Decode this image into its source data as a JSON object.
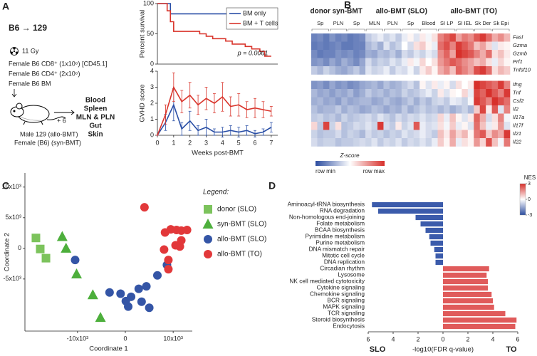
{
  "panel_labels": [
    "A",
    "B",
    "C",
    "D"
  ],
  "protocol": {
    "title": "B6 → 129",
    "dose": "11 Gy",
    "donors": [
      "Female B6 CD8⁺ (1x10⁶) [CD45.1]",
      "Female B6 CD4⁺ (2x10⁶)",
      "Female B6 BM"
    ],
    "timepoint": "+ 6",
    "tissues": [
      "Blood",
      "Spleen",
      "MLN & PLN",
      "Gut",
      "Skin"
    ],
    "recipients": [
      "Male 129 (allo-BMT)",
      "Female (B6) (syn-BMT)"
    ]
  },
  "chart_data": [
    {
      "type": "step",
      "ylabel": "Percent survival",
      "xlim": [
        0,
        7.4
      ],
      "ylim": [
        0,
        100
      ],
      "yticks": [
        0,
        50,
        100
      ],
      "legend": "upper right",
      "annotation": "p = 0.0061",
      "series": [
        {
          "name": "BM only",
          "color": "#2a4fa6",
          "x": [
            0,
            0.8,
            7
          ],
          "values": [
            100,
            83,
            83
          ]
        },
        {
          "name": "BM + T cells",
          "color": "#d9342b",
          "x": [
            0,
            0.6,
            0.8,
            1.0,
            2.6,
            3.0,
            3.4,
            4.2,
            4.6,
            5.4,
            5.8,
            6.3,
            6.6,
            7.0
          ],
          "values": [
            100,
            88,
            70,
            54,
            50,
            46,
            42,
            38,
            33,
            29,
            25,
            21,
            13,
            13
          ]
        }
      ]
    },
    {
      "type": "line",
      "ylabel": "GVHD score",
      "xlabel": "Weeks post-BMT",
      "xlim": [
        0,
        7.4
      ],
      "xticks": [
        0,
        1,
        2,
        3,
        4,
        5,
        6,
        7
      ],
      "ylim": [
        0,
        4
      ],
      "yticks": [
        0,
        1,
        2,
        3,
        4
      ],
      "x": [
        0,
        0.5,
        1,
        1.5,
        2,
        2.5,
        3,
        3.5,
        4,
        4.5,
        5,
        5.5,
        6,
        6.5,
        7
      ],
      "series": [
        {
          "color": "#2a4fa6",
          "values": [
            0,
            0.8,
            1.9,
            0.4,
            0.9,
            0.3,
            0.5,
            0.2,
            0.2,
            0.3,
            0.2,
            0.3,
            0.1,
            0.2,
            0.5
          ],
          "errors": [
            0,
            0.5,
            1.0,
            0.4,
            0.6,
            0.3,
            0.5,
            0.2,
            0.3,
            0.3,
            0.3,
            0.3,
            0.2,
            0.2,
            0.3
          ]
        },
        {
          "color": "#d9342b",
          "values": [
            0,
            1.3,
            3.0,
            2.1,
            2.5,
            1.9,
            2.3,
            2.0,
            2.4,
            1.8,
            1.9,
            1.6,
            1.7,
            1.6,
            1.5
          ],
          "errors": [
            0,
            0.6,
            0.9,
            0.7,
            0.8,
            0.6,
            0.7,
            0.6,
            0.9,
            0.6,
            0.7,
            0.5,
            0.6,
            0.5,
            0.3
          ]
        }
      ]
    },
    {
      "type": "heatmap",
      "zlim": [
        -2,
        2
      ],
      "colors": [
        "#2c4da0",
        "#ffffff",
        "#d7302b"
      ],
      "colorbar": {
        "title": "Z-score",
        "min_label": "row min",
        "max_label": "row max"
      },
      "groups": [
        {
          "label": "donor",
          "color": "#4daf3c",
          "columns": [
            null,
            "Sp",
            null
          ]
        },
        {
          "label": "syn-BMT",
          "color": "#4daf3c",
          "columns": [
            null,
            "PLN",
            null,
            null,
            "Sp",
            null
          ]
        },
        {
          "label": "allo-BMT (SLO)",
          "color": "#2f55a4",
          "columns": [
            null,
            "MLN",
            null,
            null,
            "PLN",
            null,
            null,
            "Sp",
            null,
            null,
            "Blood",
            null
          ]
        },
        {
          "label": "allo-BMT (TO)",
          "color": "#d9342b",
          "columns": [
            null,
            "SI LP",
            null,
            null,
            "SI IEL",
            null,
            null,
            "Sk Der",
            null,
            null,
            "Sk Epi",
            null
          ]
        }
      ],
      "row_blocks": [
        {
          "rows": [
            "Fasl",
            "Gzma",
            "Gzmb",
            "Prf1",
            "Tnfsf10"
          ],
          "values": [
            [
              -1.4,
              -1.3,
              -1.5,
              -1.2,
              -1.4,
              -1.3,
              -1.5,
              -1.4,
              -1.3,
              -0.6,
              -0.4,
              -0.2,
              -0.5,
              -0.3,
              -0.6,
              -0.2,
              0.1,
              -0.3,
              0.2,
              -0.1,
              0.3,
              1.2,
              1.5,
              1.8,
              0.9,
              1.3,
              1.1,
              1.6,
              1.9,
              1.4,
              0.8,
              1.1,
              0.7
            ],
            [
              -1.5,
              -1.4,
              -1.5,
              -1.4,
              -1.3,
              -1.5,
              -1.5,
              -1.4,
              -1.4,
              -0.8,
              -0.6,
              -0.9,
              -0.3,
              -0.7,
              -0.5,
              0.0,
              -0.4,
              0.3,
              0.5,
              0.1,
              -0.2,
              1.4,
              1.7,
              1.2,
              1.9,
              1.6,
              1.3,
              0.6,
              0.9,
              0.4,
              -0.3,
              0.2,
              0.1
            ],
            [
              -1.3,
              -1.5,
              -1.4,
              -1.4,
              -1.2,
              -1.3,
              -1.2,
              -1.4,
              -1.3,
              -0.9,
              -1.0,
              -0.7,
              -0.8,
              -0.6,
              -0.9,
              -0.4,
              -0.6,
              -0.3,
              -0.5,
              -0.2,
              -0.4,
              1.1,
              1.5,
              0.9,
              2.0,
              1.8,
              1.6,
              1.2,
              0.8,
              1.4,
              0.3,
              0.6,
              0.2
            ],
            [
              -1.2,
              -1.1,
              -1.3,
              -1.0,
              -1.2,
              -0.9,
              -1.1,
              -1.3,
              -1.0,
              -0.4,
              -0.7,
              -0.5,
              -0.6,
              -0.3,
              -0.5,
              -0.2,
              0.2,
              -0.1,
              0.4,
              0.0,
              0.3,
              1.0,
              1.3,
              1.6,
              1.4,
              1.1,
              0.9,
              0.6,
              0.8,
              0.3,
              -0.2,
              0.4,
              0.1
            ],
            [
              -0.6,
              -0.8,
              -0.5,
              -0.7,
              -0.9,
              -1.0,
              -0.8,
              -0.6,
              -0.9,
              -0.3,
              -0.5,
              -0.4,
              -0.2,
              -0.6,
              -0.3,
              -0.4,
              -0.1,
              -0.5,
              0.2,
              0.5,
              0.1,
              0.8,
              1.1,
              0.6,
              1.5,
              1.2,
              0.9,
              1.7,
              1.9,
              1.4,
              0.3,
              0.7,
              0.5
            ]
          ]
        },
        {
          "rows": [
            "Ifng",
            "Tnf",
            "Csf2",
            "Il2",
            "Il17a",
            "Il17f",
            "Il21",
            "Il22"
          ],
          "values": [
            [
              -1.2,
              -1.1,
              -1.3,
              -1.0,
              -1.2,
              -1.1,
              -1.3,
              -1.2,
              -1.0,
              -0.9,
              -0.8,
              -1.0,
              -0.7,
              -0.9,
              -0.8,
              -0.6,
              -0.4,
              -0.7,
              0.1,
              -0.3,
              0.2,
              -0.2,
              0.1,
              -0.4,
              0.3,
              0.0,
              0.2,
              2.0,
              1.8,
              1.6,
              1.4,
              1.9,
              1.2
            ],
            [
              -0.8,
              -1.0,
              -0.9,
              -1.1,
              -0.9,
              -1.0,
              -0.8,
              -1.1,
              -0.9,
              -0.6,
              -0.8,
              -0.7,
              -0.9,
              -0.7,
              -0.8,
              -0.5,
              -0.7,
              -0.6,
              -0.4,
              -0.2,
              -0.5,
              0.2,
              -0.3,
              0.1,
              0.0,
              0.4,
              -0.2,
              1.8,
              1.5,
              2.0,
              1.6,
              1.2,
              1.9
            ],
            [
              -0.9,
              -0.8,
              -1.0,
              -0.9,
              -1.1,
              -0.8,
              -1.0,
              -0.9,
              -0.8,
              -0.8,
              -1.0,
              -0.9,
              -0.7,
              -0.9,
              -1.0,
              -0.8,
              -0.6,
              -0.9,
              -0.6,
              -0.8,
              -0.5,
              -0.4,
              -0.6,
              -0.2,
              -0.3,
              -0.5,
              -0.1,
              1.9,
              1.6,
              1.2,
              2.0,
              1.7,
              1.4
            ],
            [
              -0.7,
              -0.9,
              -0.8,
              -0.8,
              -0.6,
              -0.9,
              -0.7,
              -0.8,
              -1.0,
              -0.9,
              -0.7,
              -0.8,
              -1.0,
              -0.8,
              -0.9,
              -0.6,
              -0.9,
              -0.7,
              -0.5,
              -0.7,
              -0.6,
              -0.8,
              -0.6,
              -0.9,
              -0.7,
              -0.5,
              -0.8,
              0.5,
              1.8,
              0.2,
              1.6,
              -0.3,
              1.2
            ],
            [
              -0.6,
              -0.5,
              -0.7,
              -0.6,
              -0.8,
              -0.5,
              -0.7,
              -0.6,
              -0.5,
              -0.4,
              -0.6,
              -0.3,
              -0.5,
              -0.7,
              -0.4,
              -0.6,
              -0.4,
              -0.5,
              -0.3,
              -0.5,
              -0.4,
              0.4,
              -0.2,
              0.6,
              0.1,
              -0.3,
              0.2,
              1.5,
              0.8,
              -0.4,
              0.3,
              1.2,
              -0.1
            ],
            [
              0.4,
              -0.6,
              1.8,
              -0.5,
              0.3,
              -0.7,
              -0.6,
              -0.4,
              -0.5,
              -0.3,
              -0.5,
              1.9,
              -0.4,
              -0.6,
              0.2,
              -0.5,
              -0.3,
              1.6,
              -0.2,
              -0.4,
              -0.3,
              0.3,
              -0.1,
              0.5,
              -0.2,
              0.1,
              -0.3,
              1.4,
              0.6,
              -0.2,
              0.2,
              1.0,
              -0.3
            ],
            [
              -0.5,
              -0.7,
              -0.6,
              -0.6,
              -0.4,
              -0.7,
              -0.5,
              -0.6,
              -0.8,
              -0.4,
              -0.6,
              -0.5,
              -0.7,
              -0.5,
              -0.6,
              -0.3,
              -0.5,
              -0.4,
              -0.2,
              -0.4,
              -0.6,
              0.6,
              0.2,
              0.9,
              0.4,
              0.7,
              0.1,
              1.3,
              1.6,
              0.5,
              1.1,
              0.8,
              1.9
            ],
            [
              -0.4,
              -0.6,
              -0.5,
              -0.5,
              -0.7,
              -0.6,
              -0.6,
              -0.5,
              -0.4,
              -0.5,
              -0.3,
              -0.6,
              -0.4,
              -0.5,
              -0.3,
              -0.6,
              -0.4,
              -0.5,
              -0.3,
              -0.5,
              -0.2,
              0.5,
              0.1,
              0.8,
              -0.2,
              0.3,
              0.1,
              1.0,
              0.4,
              1.7,
              0.6,
              -0.1,
              1.3
            ]
          ]
        }
      ]
    },
    {
      "type": "scatter",
      "xlabel": "Coordinate 1",
      "ylabel": "Coordinate 2",
      "xlim": [
        -21000,
        14000
      ],
      "ylim": [
        -13500,
        12300
      ],
      "xticks": [
        {
          "value": -10000,
          "label": "-10x10³"
        },
        0,
        {
          "value": 10000,
          "label": "10x10³"
        }
      ],
      "yticks": [
        {
          "value": -5000,
          "label": "-5x10³"
        },
        0,
        {
          "value": 5000,
          "label": "5x10³"
        },
        {
          "value": 10000,
          "label": "10x10³"
        }
      ],
      "legend_title": "Legend:",
      "legend": "right",
      "series": [
        {
          "name": "donor (SLO)",
          "color": "#7cc35c",
          "marker": "square",
          "x": [
            -18700,
            -17800,
            -16600
          ],
          "values": [
            1700,
            -100,
            -1600
          ]
        },
        {
          "name": "syn-BMT (SLO)",
          "color": "#4daf3c",
          "marker": "triangle",
          "x": [
            -13200,
            -12400,
            -10200,
            -6800,
            -5200
          ],
          "values": [
            1900,
            0,
            -4200,
            -7600,
            -11300
          ]
        },
        {
          "name": "allo-BMT (SLO)",
          "color": "#3455a6",
          "marker": "circle",
          "x": [
            -10500,
            -3300,
            -1000,
            100,
            600,
            1200,
            2800,
            3400,
            4400,
            5000,
            6700,
            8700
          ],
          "values": [
            -1900,
            -7200,
            -7400,
            -8600,
            -9500,
            -7900,
            -6600,
            -8700,
            -6200,
            -9700,
            -4400,
            -2700
          ]
        },
        {
          "name": "allo-BMT (TO)",
          "color": "#e2383a",
          "marker": "circle",
          "x": [
            4000,
            8300,
            9500,
            10700,
            11700,
            12900,
            8100,
            10500,
            9000,
            9000,
            11400,
            11700
          ],
          "values": [
            6700,
            2600,
            3100,
            3000,
            2900,
            3000,
            -200,
            500,
            -1900,
            -3400,
            300,
            1300
          ]
        }
      ]
    },
    {
      "type": "hbar",
      "xlabel": "-log10(FDR q-value)",
      "xlim": [
        -6,
        6
      ],
      "xticks": [
        {
          "value": -6,
          "label": "6"
        },
        {
          "value": -4,
          "label": "4"
        },
        {
          "value": -2,
          "label": "2"
        },
        0,
        2,
        4,
        6
      ],
      "colors": {
        "negative": "#3b5bab",
        "positive": "#e05b5b"
      },
      "side_labels": [
        {
          "label": "SLO",
          "color": "#3a5ca9"
        },
        {
          "label": "TO",
          "color": "#d63b32"
        }
      ],
      "colorbar": {
        "title": "NES",
        "ticks": [
          3,
          0,
          -3
        ],
        "colors": [
          "#2c4da0",
          "#ffffff",
          "#d7302b"
        ]
      },
      "categories": [
        "Aminoacyl-tRNA biosynthesis",
        "RNA degradation",
        "Non-homologous end-joining",
        "Folate metabolism",
        "BCAA biosynthesis",
        "Pyrimidine metabolism",
        "Purine metabolism",
        "DNA mismatch repair",
        "Mitotic cell cycle",
        "DNA replication",
        "Circadian rhythm",
        "Lysosome",
        "NK cell mediated cytotoxicity",
        "Cytokine signaling",
        "Chemokine signaling",
        "BCR signaling",
        "MAPK signaling",
        "TCR signaling",
        "Steroid biosynthesis",
        "Endocytosis"
      ],
      "values": [
        -5.7,
        -5.2,
        -2.2,
        -1.8,
        -1.4,
        -1.1,
        -1.0,
        -0.7,
        -0.6,
        -0.6,
        3.7,
        3.5,
        3.6,
        3.6,
        3.9,
        4.0,
        4.1,
        5.0,
        5.9,
        5.8
      ]
    }
  ]
}
